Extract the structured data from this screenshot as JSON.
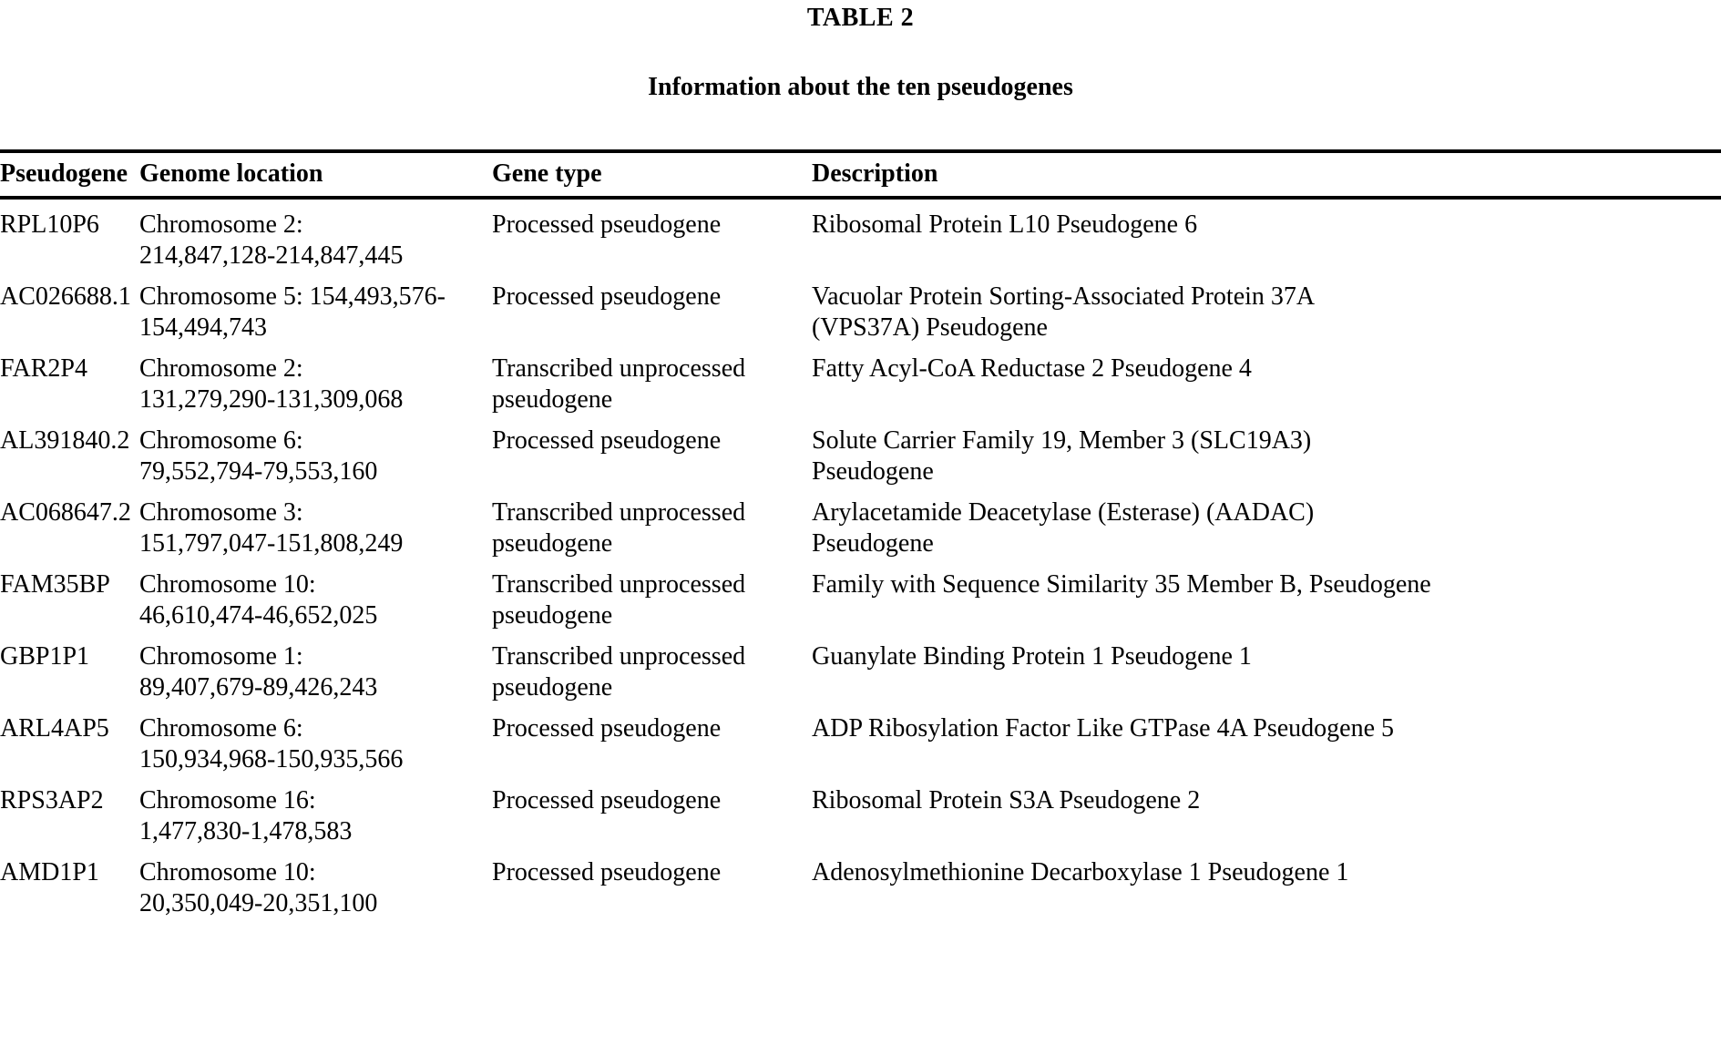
{
  "page": {
    "title": "TABLE 2",
    "subtitle": "Information about the ten pseudogenes"
  },
  "table": {
    "headers": [
      "Pseudogene",
      "Genome location",
      "Gene type",
      "Description"
    ],
    "rows": [
      {
        "pseudogene": "RPL10P6",
        "location": "Chromosome 2:\n214,847,128-214,847,445",
        "gene_type": "Processed pseudogene",
        "description": "Ribosomal Protein L10 Pseudogene 6"
      },
      {
        "pseudogene": "AC026688.1",
        "location": "Chromosome 5: 154,493,576-\n154,494,743",
        "gene_type": "Processed pseudogene",
        "description": "Vacuolar Protein Sorting-Associated Protein 37A\n(VPS37A) Pseudogene"
      },
      {
        "pseudogene": "FAR2P4",
        "location": "Chromosome 2:\n131,279,290-131,309,068",
        "gene_type": "Transcribed unprocessed\npseudogene",
        "description": "Fatty Acyl-CoA Reductase 2 Pseudogene 4"
      },
      {
        "pseudogene": "AL391840.2",
        "location": "Chromosome 6:\n79,552,794-79,553,160",
        "gene_type": "Processed pseudogene",
        "description": "Solute Carrier Family 19, Member 3 (SLC19A3)\nPseudogene"
      },
      {
        "pseudogene": "AC068647.2",
        "location": "Chromosome 3:\n151,797,047-151,808,249",
        "gene_type": "Transcribed unprocessed\npseudogene",
        "description": "Arylacetamide Deacetylase (Esterase) (AADAC)\nPseudogene"
      },
      {
        "pseudogene": "FAM35BP",
        "location": "Chromosome 10:\n46,610,474-46,652,025",
        "gene_type": "Transcribed unprocessed\npseudogene",
        "description": "Family with Sequence Similarity 35 Member B, Pseudogene"
      },
      {
        "pseudogene": "GBP1P1",
        "location": "Chromosome 1:\n89,407,679-89,426,243",
        "gene_type": "Transcribed unprocessed\npseudogene",
        "description": "Guanylate Binding Protein 1 Pseudogene 1"
      },
      {
        "pseudogene": "ARL4AP5",
        "location": "Chromosome 6:\n150,934,968-150,935,566",
        "gene_type": "Processed pseudogene",
        "description": "ADP Ribosylation Factor Like GTPase 4A Pseudogene 5"
      },
      {
        "pseudogene": "RPS3AP2",
        "location": "Chromosome 16:\n1,477,830-1,478,583",
        "gene_type": "Processed pseudogene",
        "description": "Ribosomal Protein S3A Pseudogene 2"
      },
      {
        "pseudogene": "AMD1P1",
        "location": "Chromosome 10:\n20,350,049-20,351,100",
        "gene_type": "Processed pseudogene",
        "description": "Adenosylmethionine Decarboxylase 1 Pseudogene 1"
      }
    ]
  }
}
